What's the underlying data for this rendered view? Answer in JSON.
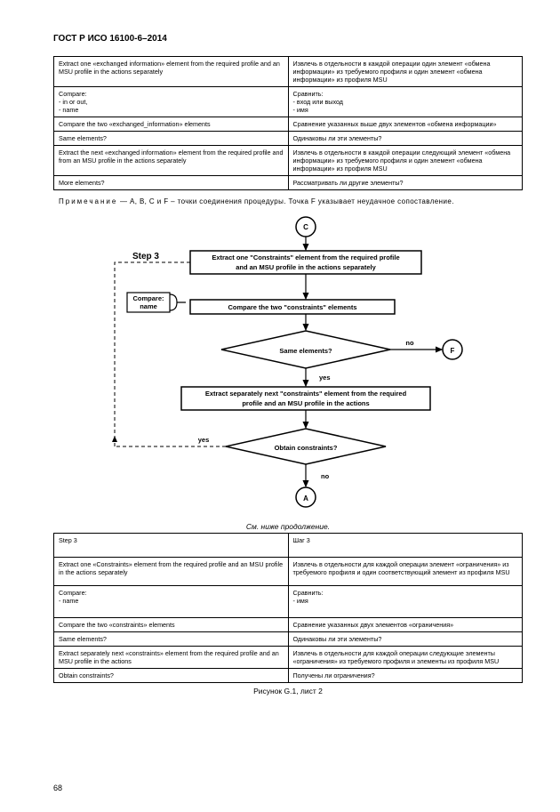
{
  "header": "ГОСТ Р ИСО 16100-6–2014",
  "table1": {
    "rows": [
      [
        "Extract one «exchanged information» element from the required profile and an MSU profile in the actions separately",
        "Извлечь в отдельности в каждой операции один элемент «обмена информации» из требуемого профиля и один элемент «обмена информации» из профиля MSU"
      ],
      [
        "Compare:\n- in or out,\n- name",
        "Сравнить:\n- вход или выход\n- имя"
      ],
      [
        "Compare the two «exchanged_information» elements",
        "Сравнение указанных выше двух элементов «обмена информации»"
      ],
      [
        "Same elements?",
        "Одинаковы ли эти элементы?"
      ],
      [
        "Extract the next «exchanged information» element from the required profile and from an MSU profile in the actions separately",
        "Извлечь в отдельности в каждой операции следующий элемент «обмена информации» из требуемого профиля и один элемент «обмена информации» из профиля MSU"
      ],
      [
        "More elements?",
        "Рассматривать ли другие элементы?"
      ]
    ]
  },
  "note": {
    "label": "Примечание",
    "text": "— A, B, C и F – точки соединения процедуры. Точка F указывает неудачное сопоставление."
  },
  "flowchart": {
    "step_label": "Step 3",
    "connector_C": "C",
    "connector_F": "F",
    "connector_A": "A",
    "box1": [
      "Extract one \"Constraints\" element from the required profile",
      "and an MSU profile in the actions separately"
    ],
    "compare_box": [
      "Compare:",
      "name"
    ],
    "box2": "Compare the two \"constraints\" elements",
    "decision1": "Same elements?",
    "box3": [
      "Extract separately next \"constraints\" element from the required",
      "profile and an MSU profile in the actions"
    ],
    "decision2": "Obtain constraints?",
    "yes": "yes",
    "no": "no",
    "colors": {
      "stroke": "#000000",
      "fill": "#ffffff",
      "dash": "4,3"
    }
  },
  "continuation": "См. ниже продолжение.",
  "table2": {
    "rows": [
      [
        "Step 3",
        "Шаг 3"
      ],
      [
        "Extract one «Constraints» element from the required profile and an MSU profile in the actions separately",
        "Извлечь в отдельности для каждой операции элемент «ограничения» из требуемого профиля и один соответствующий элемент из профиля MSU"
      ],
      [
        "Compare:\n- name",
        "Сравнить:\n- имя"
      ],
      [
        "Compare the two «constraints» elements",
        "Сравнение указанных двух элементов «ограничения»"
      ],
      [
        "Same elements?",
        "Одинаковы ли эти элементы?"
      ],
      [
        "Extract separately next «constraints» element from the required profile and an MSU profile in the actions",
        "Извлечь в отдельности для каждой операции следующие элементы «ограничения» из требуемого профиля и элементы из профиля MSU"
      ],
      [
        "Obtain constraints?",
        "Получены ли ограничения?"
      ]
    ]
  },
  "caption": "Рисунок G.1, лист 2",
  "pagenum": "68"
}
